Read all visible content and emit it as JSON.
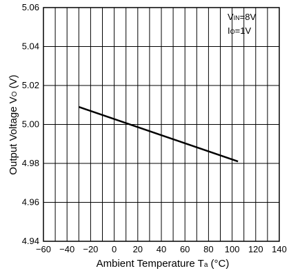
{
  "chart_data": {
    "type": "line",
    "title": "",
    "xlabel": {
      "main": "Ambient Temperature T",
      "sub": "a",
      "unit": " (°C)"
    },
    "ylabel": {
      "main": "Output Voltage V",
      "sub": "O",
      "unit": " (V)"
    },
    "xlim": [
      -60,
      140
    ],
    "ylim": [
      4.94,
      5.06
    ],
    "xticks": [
      -60,
      -40,
      -20,
      0,
      20,
      40,
      60,
      80,
      100,
      120,
      140
    ],
    "xtick_labels": [
      "−60",
      "−40",
      "−20",
      "0",
      "20",
      "40",
      "60",
      "80",
      "100",
      "120",
      "140"
    ],
    "yticks": [
      4.94,
      4.96,
      4.98,
      5.0,
      5.02,
      5.04,
      5.06
    ],
    "ytick_labels": [
      "4.94",
      "4.96",
      "4.98",
      "5.00",
      "5.02",
      "5.04",
      "5.06"
    ],
    "grid_x": [
      -60,
      -50,
      -40,
      -30,
      -20,
      -10,
      0,
      10,
      20,
      30,
      40,
      50,
      60,
      70,
      80,
      90,
      100,
      110,
      120,
      130,
      140
    ],
    "grid_y": [
      4.94,
      4.96,
      4.98,
      5.0,
      5.02,
      5.04,
      5.06
    ],
    "grid": true,
    "legend": "none",
    "annotations": [
      {
        "main": "V",
        "sub": "IN",
        "rest": "=8V"
      },
      {
        "main": "I",
        "sub": "O",
        "rest": "=1V"
      }
    ],
    "series": [
      {
        "x": [
          -30,
          105
        ],
        "y": [
          5.009,
          4.981
        ],
        "color": "#000000"
      }
    ]
  }
}
